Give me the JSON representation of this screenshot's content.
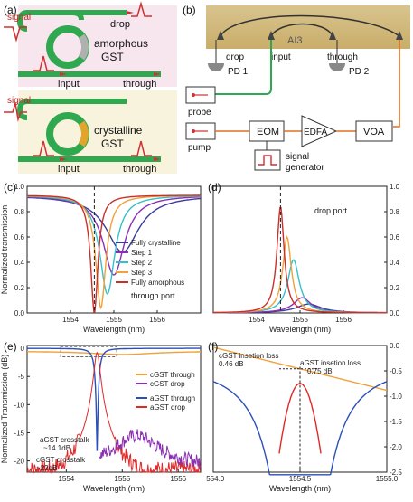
{
  "panel_labels": {
    "a": "(a)",
    "b": "(b)",
    "c": "(c)",
    "d": "(d)",
    "e": "(e)",
    "f": "(f)"
  },
  "panel_a": {
    "top": {
      "signal": "signal",
      "drop": "drop",
      "input": "input",
      "through": "through",
      "state_line1": "amorphous",
      "state_line2": "GST"
    },
    "bottom": {
      "signal": "signal",
      "input": "input",
      "through": "through",
      "state_line1": "crystalline",
      "state_line2": "GST"
    }
  },
  "panel_b": {
    "chip_label": "AI3",
    "pd1": "PD 1",
    "pd2": "PD 2",
    "drop": "drop",
    "input": "input",
    "through": "through",
    "probe": "probe",
    "pump": "pump",
    "eom": "EOM",
    "edfa": "EDFA",
    "voa": "VOA",
    "signal_generator_line1": "signal",
    "signal_generator_line2": "generator"
  },
  "colors": {
    "fully_crystalline": "#3b3b9b",
    "step1": "#8a2fb3",
    "step2": "#35c0c8",
    "step3": "#f0a13a",
    "fully_amorphous": "#c9302c",
    "cgst_through": "#f0a13a",
    "cgst_drop": "#8a2fb3",
    "agst_through": "#2b4fb8",
    "agst_drop": "#e02828",
    "waveguide_green": "#2fa84f",
    "ring_gray": "#b0b0b0",
    "ring_gold": "#e0a52a"
  },
  "chart_data": [
    {
      "id": "c",
      "type": "line",
      "xlabel": "Wavelength (nm)",
      "ylabel": "Normalized transmission",
      "xlim": [
        1553,
        1557
      ],
      "ylim": [
        0,
        1.0
      ],
      "xticks": [
        "1554",
        "1555",
        "1556"
      ],
      "yticks": [
        "0.0",
        "0.2",
        "0.4",
        "0.6",
        "0.8",
        "1.0"
      ],
      "annotation": "through port",
      "series": [
        {
          "name": "Fully crystalline",
          "center": 1555.2,
          "min": 0.48,
          "width": 0.9
        },
        {
          "name": "Step 1",
          "center": 1555.0,
          "min": 0.3,
          "width": 0.6
        },
        {
          "name": "Step 2",
          "center": 1554.85,
          "min": 0.15,
          "width": 0.42
        },
        {
          "name": "Step 3",
          "center": 1554.7,
          "min": 0.04,
          "width": 0.28
        },
        {
          "name": "Fully amorphous",
          "center": 1554.55,
          "min": 0.0,
          "width": 0.2
        }
      ]
    },
    {
      "id": "d",
      "type": "line",
      "xlabel": "Wavelength (nm)",
      "ylabel": "",
      "xlim": [
        1553,
        1557
      ],
      "ylim": [
        0,
        1.0
      ],
      "xticks": [
        "1554",
        "1555",
        "1556"
      ],
      "yticks": [
        "0.0",
        "0.2",
        "0.4",
        "0.6",
        "0.8",
        "1.0"
      ],
      "annotation": "drop port",
      "series": [
        {
          "name": "Fully crystalline",
          "center": 1555.2,
          "peak": 0.07,
          "width": 0.7
        },
        {
          "name": "Step 1",
          "center": 1555.05,
          "peak": 0.12,
          "width": 0.5
        },
        {
          "name": "Step 2",
          "center": 1554.85,
          "peak": 0.42,
          "width": 0.32
        },
        {
          "name": "Step 3",
          "center": 1554.7,
          "peak": 0.6,
          "width": 0.24
        },
        {
          "name": "Fully amorphous",
          "center": 1554.55,
          "peak": 0.84,
          "width": 0.2
        }
      ]
    },
    {
      "id": "e",
      "type": "line",
      "xlabel": "Wavelength (nm)",
      "ylabel": "Normalized Transmission (dB)",
      "xlim": [
        1553.3,
        1556.4
      ],
      "ylim": [
        -22,
        0.5
      ],
      "xticks": [
        "1554",
        "1555",
        "1556"
      ],
      "yticks": [
        "0",
        "-5",
        "-10",
        "-15",
        "-20"
      ],
      "annotations": [
        "aGST crosstalk",
        "~14.1dB",
        "cGST crosstalk",
        "~22dB"
      ],
      "legend": [
        "cGST through",
        "cGST drop",
        "aGST through",
        "aGST drop"
      ]
    },
    {
      "id": "f",
      "type": "line",
      "xlabel": "Wavelength (nm)",
      "ylabel": "",
      "xlim": [
        1554.0,
        1555.0
      ],
      "ylim": [
        -2.5,
        0.0
      ],
      "xticks": [
        "1554.0",
        "1554.5",
        "1555.0"
      ],
      "yticks": [
        "0.0",
        "-0.5",
        "-1.0",
        "-1.5",
        "-2.0",
        "-2.5"
      ],
      "annotations": [
        "cGST insetion loss",
        "0.46 dB",
        "aGST insetion loss",
        "0.75 dB"
      ]
    }
  ]
}
